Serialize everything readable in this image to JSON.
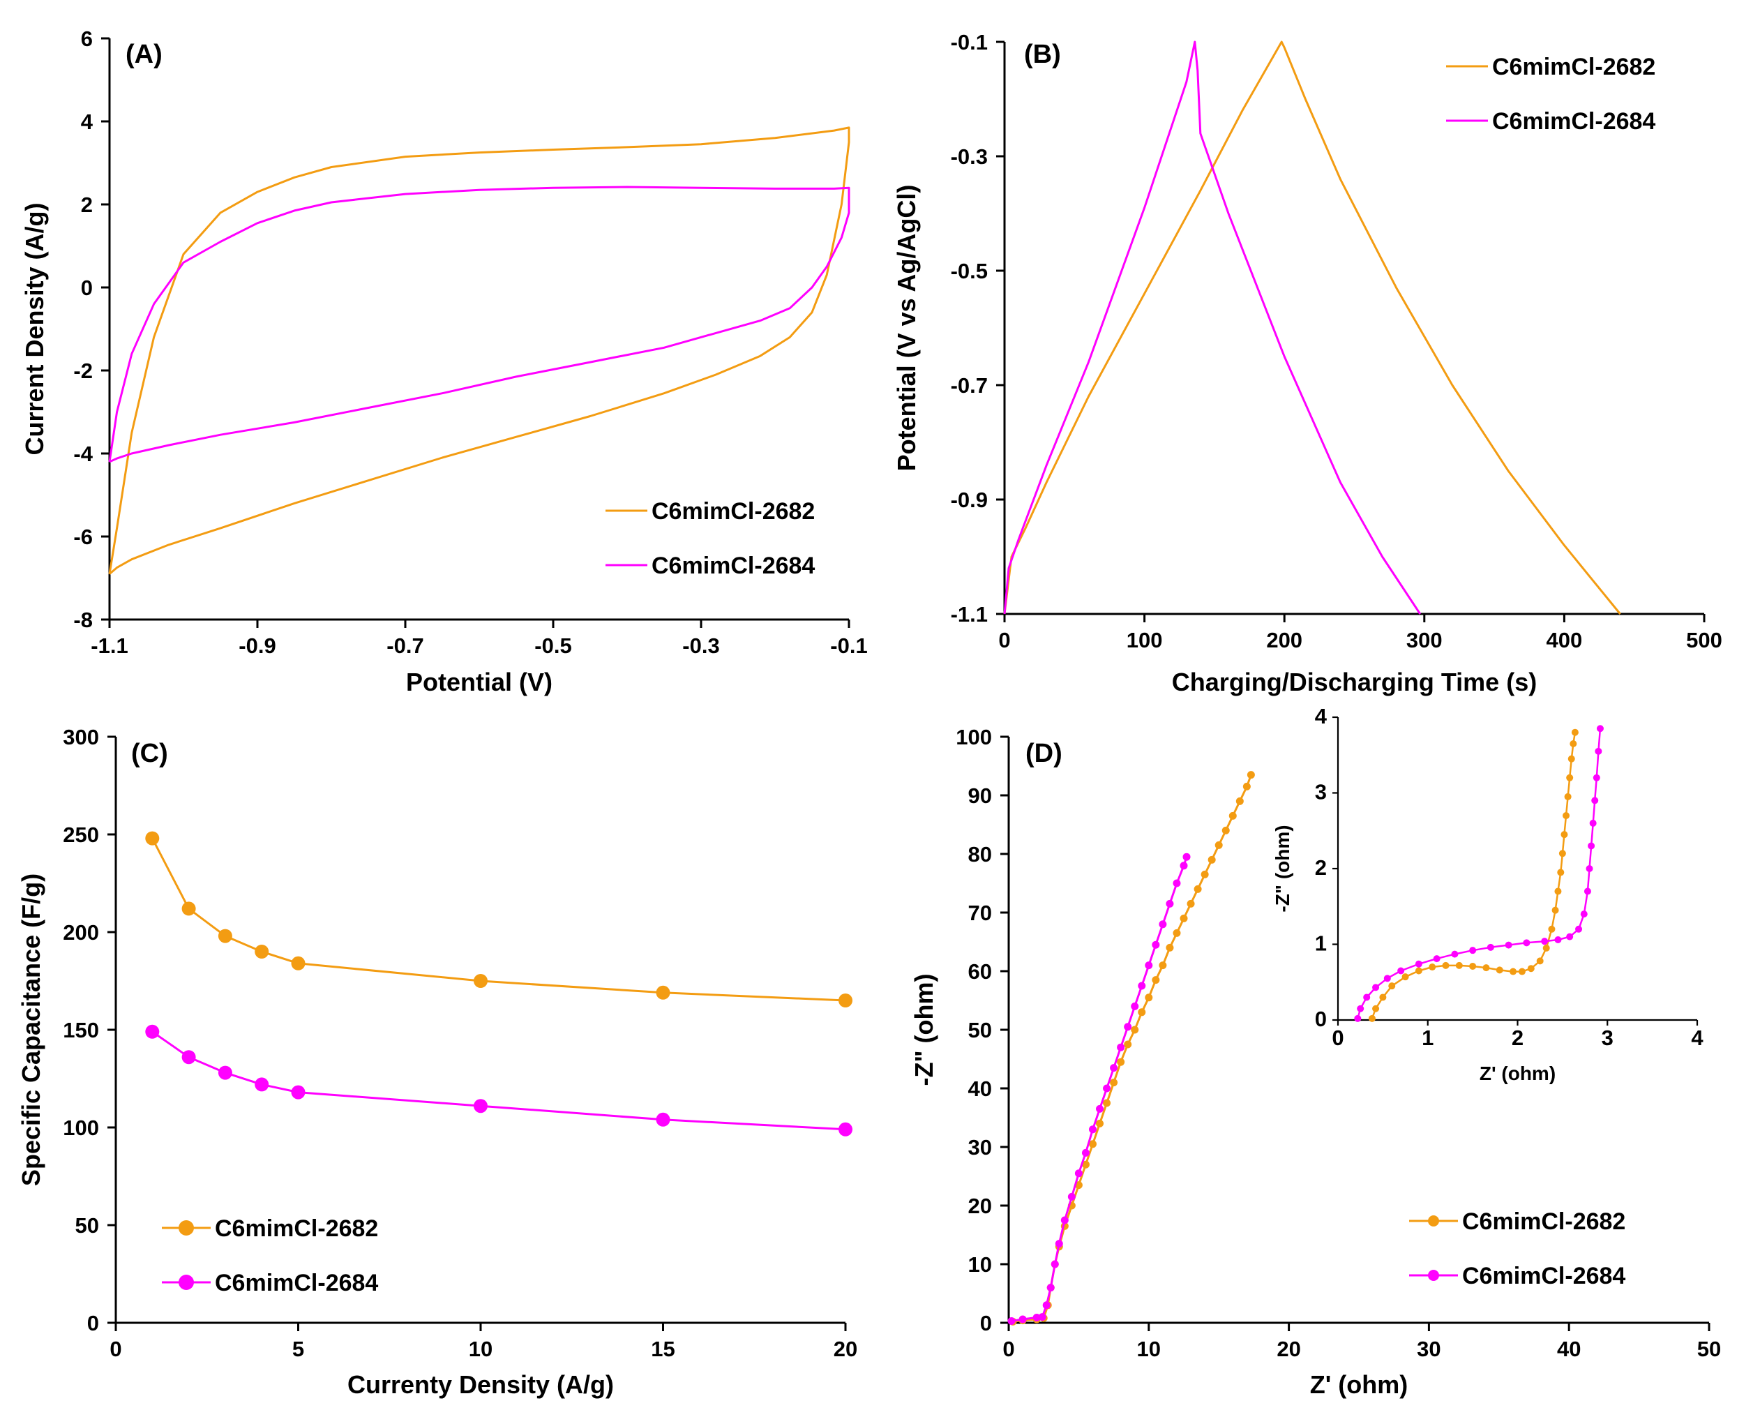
{
  "colors": {
    "series1": "#F39C12",
    "series2": "#FF00FF"
  },
  "chart_data": [
    {
      "panel": "(A)",
      "type": "line",
      "xlabel": "Potential (V)",
      "ylabel": "Current Density (A/g)",
      "xlim": [
        -1.1,
        -0.1
      ],
      "ylim": [
        -8,
        6
      ],
      "xticks": [
        -1.1,
        -0.9,
        -0.7,
        -0.5,
        -0.3,
        -0.1
      ],
      "xtick_labels": [
        "-1.1",
        "-0.9",
        "-0.7",
        "-0.5",
        "-0.3",
        "-0.1"
      ],
      "yticks": [
        -8,
        -6,
        -4,
        -2,
        0,
        2,
        4,
        6
      ],
      "ytick_labels": [
        "-8",
        "-6",
        "-4",
        "-2",
        "0",
        "2",
        "4",
        "6"
      ],
      "legend": "bottom-right",
      "series": [
        {
          "name": "C6mimCl-2682",
          "x": [
            -1.1,
            -1.09,
            -1.07,
            -1.04,
            -1.0,
            -0.95,
            -0.9,
            -0.85,
            -0.8,
            -0.7,
            -0.6,
            -0.5,
            -0.4,
            -0.3,
            -0.2,
            -0.12,
            -0.1,
            -0.1,
            -0.11,
            -0.13,
            -0.15,
            -0.18,
            -0.22,
            -0.28,
            -0.35,
            -0.45,
            -0.55,
            -0.65,
            -0.75,
            -0.85,
            -0.95,
            -1.02,
            -1.07,
            -1.09,
            -1.1
          ],
          "y": [
            -6.9,
            -5.8,
            -3.5,
            -1.2,
            0.8,
            1.8,
            2.3,
            2.65,
            2.9,
            3.15,
            3.25,
            3.32,
            3.38,
            3.45,
            3.6,
            3.78,
            3.85,
            3.5,
            2.0,
            0.3,
            -0.6,
            -1.2,
            -1.65,
            -2.1,
            -2.55,
            -3.1,
            -3.6,
            -4.1,
            -4.65,
            -5.2,
            -5.8,
            -6.2,
            -6.55,
            -6.75,
            -6.9
          ]
        },
        {
          "name": "C6mimCl-2684",
          "x": [
            -1.1,
            -1.09,
            -1.07,
            -1.04,
            -1.0,
            -0.95,
            -0.9,
            -0.85,
            -0.8,
            -0.7,
            -0.6,
            -0.5,
            -0.4,
            -0.3,
            -0.2,
            -0.12,
            -0.1,
            -0.1,
            -0.11,
            -0.13,
            -0.15,
            -0.18,
            -0.22,
            -0.28,
            -0.35,
            -0.45,
            -0.55,
            -0.65,
            -0.75,
            -0.85,
            -0.95,
            -1.02,
            -1.07,
            -1.09,
            -1.1
          ],
          "y": [
            -4.2,
            -3.0,
            -1.6,
            -0.4,
            0.6,
            1.1,
            1.55,
            1.85,
            2.05,
            2.25,
            2.35,
            2.4,
            2.42,
            2.4,
            2.38,
            2.38,
            2.4,
            1.8,
            1.2,
            0.5,
            0.0,
            -0.5,
            -0.8,
            -1.1,
            -1.45,
            -1.8,
            -2.15,
            -2.55,
            -2.9,
            -3.25,
            -3.55,
            -3.8,
            -4.0,
            -4.12,
            -4.2
          ]
        }
      ]
    },
    {
      "panel": "(B)",
      "type": "line",
      "xlabel": "Charging/Discharging Time (s)",
      "ylabel": "Potential (V vs Ag/AgCl)",
      "xlim": [
        0,
        500
      ],
      "ylim": [
        -1.1,
        -0.1
      ],
      "xticks": [
        0,
        100,
        200,
        300,
        400,
        500
      ],
      "xtick_labels": [
        "0",
        "100",
        "200",
        "300",
        "400",
        "500"
      ],
      "yticks": [
        -1.1,
        -0.9,
        -0.7,
        -0.5,
        -0.3,
        -0.1
      ],
      "ytick_labels": [
        "-1.1",
        "-0.9",
        "-0.7",
        "-0.5",
        "-0.3",
        "-0.1"
      ],
      "legend": "top-right",
      "series": [
        {
          "name": "C6mimCl-2682",
          "x": [
            0,
            5,
            15,
            30,
            60,
            100,
            140,
            170,
            198,
            200,
            215,
            240,
            280,
            320,
            360,
            400,
            440
          ],
          "y": [
            -1.1,
            -1.0,
            -0.95,
            -0.87,
            -0.72,
            -0.54,
            -0.36,
            -0.22,
            -0.1,
            -0.11,
            -0.2,
            -0.34,
            -0.53,
            -0.7,
            -0.85,
            -0.98,
            -1.1
          ]
        },
        {
          "name": "C6mimCl-2684",
          "x": [
            0,
            3,
            10,
            30,
            60,
            100,
            130,
            136,
            138,
            140,
            160,
            200,
            240,
            270,
            297
          ],
          "y": [
            -1.1,
            -1.02,
            -0.97,
            -0.84,
            -0.66,
            -0.39,
            -0.17,
            -0.1,
            -0.15,
            -0.26,
            -0.4,
            -0.65,
            -0.87,
            -1.0,
            -1.1
          ]
        }
      ]
    },
    {
      "panel": "(C)",
      "type": "line",
      "xlabel": "Currenty Density (A/g)",
      "ylabel": "Specific Capacitance (F/g)",
      "xlim": [
        0,
        20
      ],
      "ylim": [
        0,
        300
      ],
      "xticks": [
        0,
        5,
        10,
        15,
        20
      ],
      "xtick_labels": [
        "0",
        "5",
        "10",
        "15",
        "20"
      ],
      "yticks": [
        0,
        50,
        100,
        150,
        200,
        250,
        300
      ],
      "ytick_labels": [
        "0",
        "50",
        "100",
        "150",
        "200",
        "250",
        "300"
      ],
      "legend": "bottom-left",
      "series": [
        {
          "name": "C6mimCl-2682",
          "x": [
            1,
            2,
            3,
            4,
            5,
            10,
            15,
            20
          ],
          "y": [
            248,
            212,
            198,
            190,
            184,
            175,
            169,
            165
          ]
        },
        {
          "name": "C6mimCl-2684",
          "x": [
            1,
            2,
            3,
            4,
            5,
            10,
            15,
            20
          ],
          "y": [
            149,
            136,
            128,
            122,
            118,
            111,
            104,
            99
          ]
        }
      ]
    },
    {
      "panel": "(D)",
      "type": "scatter",
      "xlabel": "Z' (ohm)",
      "ylabel": "-Z\" (ohm)",
      "xlim": [
        0,
        50
      ],
      "ylim": [
        0,
        100
      ],
      "xticks": [
        0,
        10,
        20,
        30,
        40,
        50
      ],
      "xtick_labels": [
        "0",
        "10",
        "20",
        "30",
        "40",
        "50"
      ],
      "yticks": [
        0,
        10,
        20,
        30,
        40,
        50,
        60,
        70,
        80,
        90,
        100
      ],
      "ytick_labels": [
        "0",
        "10",
        "20",
        "30",
        "40",
        "50",
        "60",
        "70",
        "80",
        "90",
        "100"
      ],
      "legend": "bottom-right",
      "series": [
        {
          "name": "C6mimCl-2682",
          "x": [
            0.3,
            1.0,
            2.0,
            2.5,
            2.8,
            3.0,
            3.3,
            3.6,
            4.0,
            4.5,
            5.0,
            5.5,
            6.0,
            6.5,
            7.0,
            7.5,
            8.0,
            8.5,
            9.0,
            9.5,
            10.0,
            10.5,
            11.0,
            11.5,
            12.0,
            12.5,
            13.0,
            13.5,
            14.0,
            14.5,
            15.0,
            15.5,
            16.0,
            16.5,
            17.0,
            17.3
          ],
          "y": [
            0.2,
            0.4,
            0.6,
            0.8,
            3,
            6,
            10,
            13,
            16.5,
            20,
            23.5,
            27,
            30.5,
            34,
            37.5,
            41,
            44.5,
            47.5,
            50,
            53,
            55.5,
            58.5,
            61,
            64,
            66.5,
            69,
            71.5,
            74,
            76.5,
            79,
            81.5,
            84,
            86.5,
            89,
            91.5,
            93.5
          ]
        },
        {
          "name": "C6mimCl-2684",
          "x": [
            0.2,
            1.0,
            2.0,
            2.4,
            2.7,
            3.0,
            3.3,
            3.6,
            4.0,
            4.5,
            5.0,
            5.5,
            6.0,
            6.5,
            7.0,
            7.5,
            8.0,
            8.5,
            9.0,
            9.5,
            10.0,
            10.5,
            11.0,
            11.5,
            12.0,
            12.5,
            12.7
          ],
          "y": [
            0.3,
            0.6,
            0.9,
            1.0,
            3,
            6,
            10,
            13.5,
            17.5,
            21.5,
            25.5,
            29,
            33,
            36.5,
            40,
            43.5,
            47,
            50.5,
            54,
            57.5,
            61,
            64.5,
            68,
            71.5,
            75,
            78,
            79.5
          ]
        }
      ]
    },
    {
      "panel": "(D) inset",
      "type": "scatter",
      "xlabel": "Z' (ohm)",
      "ylabel": "-Z\" (ohm)",
      "xlim": [
        0,
        4
      ],
      "ylim": [
        0,
        4
      ],
      "xticks": [
        0,
        1,
        2,
        3,
        4
      ],
      "xtick_labels": [
        "0",
        "1",
        "2",
        "3",
        "4"
      ],
      "yticks": [
        0,
        1,
        2,
        3,
        4
      ],
      "ytick_labels": [
        "0",
        "1",
        "2",
        "3",
        "4"
      ],
      "series": [
        {
          "name": "C6mimCl-2682",
          "x": [
            0.38,
            0.42,
            0.5,
            0.6,
            0.75,
            0.9,
            1.05,
            1.2,
            1.35,
            1.5,
            1.65,
            1.8,
            1.95,
            2.05,
            2.15,
            2.25,
            2.32,
            2.38,
            2.42,
            2.45,
            2.48,
            2.5,
            2.52,
            2.54,
            2.56,
            2.58,
            2.6,
            2.62,
            2.64
          ],
          "y": [
            0.02,
            0.15,
            0.3,
            0.45,
            0.57,
            0.65,
            0.7,
            0.72,
            0.72,
            0.71,
            0.69,
            0.66,
            0.64,
            0.64,
            0.68,
            0.78,
            0.95,
            1.2,
            1.45,
            1.7,
            1.95,
            2.2,
            2.45,
            2.7,
            2.95,
            3.2,
            3.45,
            3.65,
            3.8
          ]
        },
        {
          "name": "C6mimCl-2684",
          "x": [
            0.22,
            0.25,
            0.32,
            0.42,
            0.55,
            0.7,
            0.9,
            1.1,
            1.3,
            1.5,
            1.7,
            1.9,
            2.1,
            2.3,
            2.45,
            2.58,
            2.68,
            2.74,
            2.78,
            2.8,
            2.82,
            2.84,
            2.86,
            2.88,
            2.9,
            2.92
          ],
          "y": [
            0.02,
            0.15,
            0.3,
            0.43,
            0.55,
            0.65,
            0.74,
            0.81,
            0.87,
            0.92,
            0.96,
            0.99,
            1.02,
            1.04,
            1.06,
            1.1,
            1.2,
            1.4,
            1.7,
            2.0,
            2.3,
            2.6,
            2.9,
            3.2,
            3.55,
            3.85
          ]
        }
      ]
    }
  ]
}
